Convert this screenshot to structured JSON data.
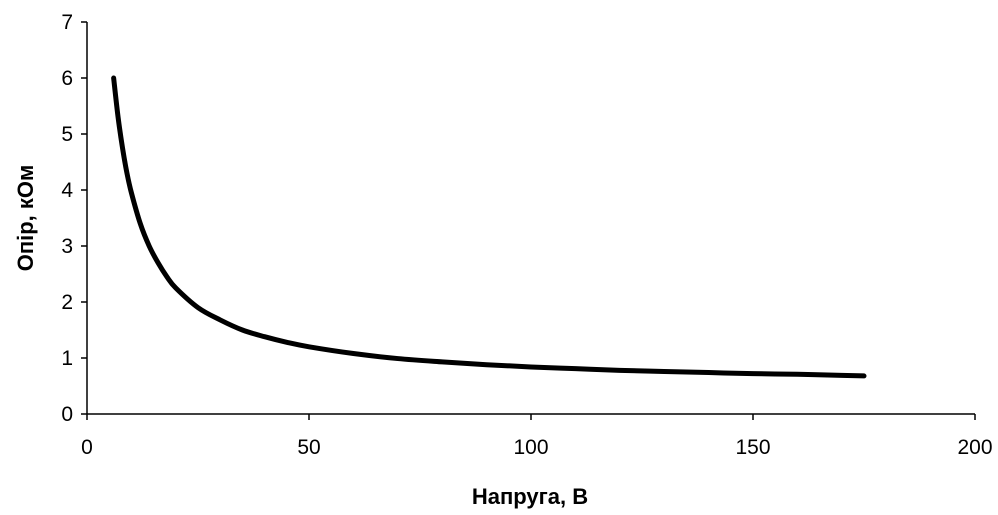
{
  "chart_data": {
    "type": "line",
    "title": "",
    "xlabel": "Напруга, В",
    "ylabel": "Опір, кОм",
    "xlim": [
      0,
      200
    ],
    "ylim": [
      0,
      7
    ],
    "x_ticks": [
      0,
      50,
      100,
      150,
      200
    ],
    "y_ticks": [
      0,
      1,
      2,
      3,
      4,
      5,
      6,
      7
    ],
    "grid": false,
    "legend": "none",
    "series": [
      {
        "color": "#000000",
        "x": [
          6,
          7,
          8,
          9,
          10,
          12,
          14,
          16,
          18,
          20,
          25,
          30,
          35,
          40,
          45,
          50,
          60,
          70,
          80,
          90,
          100,
          110,
          120,
          130,
          140,
          150,
          160,
          170,
          175
        ],
        "y": [
          6.0,
          5.3,
          4.75,
          4.3,
          3.95,
          3.4,
          3.0,
          2.7,
          2.45,
          2.25,
          1.9,
          1.68,
          1.5,
          1.38,
          1.28,
          1.2,
          1.08,
          0.99,
          0.93,
          0.88,
          0.84,
          0.81,
          0.78,
          0.76,
          0.74,
          0.72,
          0.71,
          0.69,
          0.68
        ]
      }
    ]
  }
}
